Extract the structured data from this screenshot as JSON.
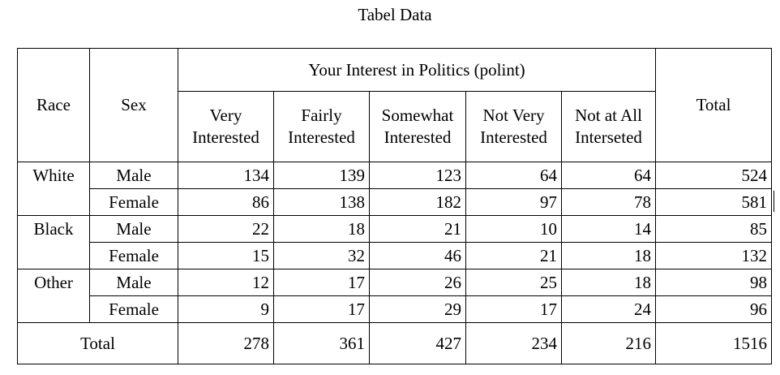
{
  "title": "Tabel Data",
  "headers": {
    "race": "Race",
    "sex": "Sex",
    "group": "Your Interest in Politics (polint)",
    "columns": [
      "Very Interested",
      "Fairly Interested",
      "Somewhat Interested",
      "Not Very Interested",
      "Not at All Interseted"
    ],
    "total": "Total"
  },
  "rows": [
    {
      "race": "White",
      "sex": "Male",
      "values": [
        "134",
        "139",
        "123",
        "64",
        "64"
      ],
      "total": "524"
    },
    {
      "race": "",
      "sex": "Female",
      "values": [
        "86",
        "138",
        "182",
        "97",
        "78"
      ],
      "total": "581"
    },
    {
      "race": "Black",
      "sex": "Male",
      "values": [
        "22",
        "18",
        "21",
        "10",
        "14"
      ],
      "total": "85"
    },
    {
      "race": "",
      "sex": "Female",
      "values": [
        "15",
        "32",
        "46",
        "21",
        "18"
      ],
      "total": "132"
    },
    {
      "race": "Other",
      "sex": "Male",
      "values": [
        "12",
        "17",
        "26",
        "25",
        "18"
      ],
      "total": "98"
    },
    {
      "race": "",
      "sex": "Female",
      "values": [
        "9",
        "17",
        "29",
        "17",
        "24"
      ],
      "total": "96"
    }
  ],
  "totals": {
    "label": "Total",
    "values": [
      "278",
      "361",
      "427",
      "234",
      "216"
    ],
    "grand": "1516"
  }
}
